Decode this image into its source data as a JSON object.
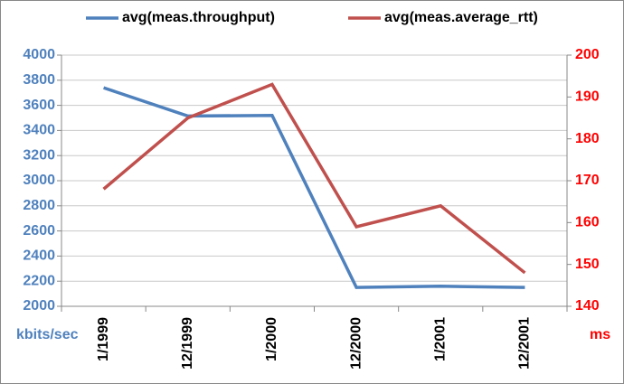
{
  "chart_data": {
    "type": "line",
    "categories": [
      "1/1999",
      "12/1999",
      "1/2000",
      "12/2000",
      "1/2001",
      "12/2001"
    ],
    "series": [
      {
        "name": "avg(meas.throughput)",
        "color": "#4f81bd",
        "values": [
          3740,
          3515,
          3520,
          2150,
          2160,
          2150
        ]
      },
      {
        "name": "avg(meas.average_rtt)",
        "color": "#c0504d",
        "axis": "y2",
        "values": [
          168,
          185,
          193,
          159,
          164,
          148
        ]
      }
    ],
    "y_label": "kbits/sec",
    "y2_label": "ms",
    "ylim": [
      2000,
      4000
    ],
    "yticks": [
      2000,
      2200,
      2400,
      2600,
      2800,
      3000,
      3200,
      3400,
      3600,
      3800,
      4000
    ],
    "y2lim": [
      140,
      200
    ],
    "y2ticks": [
      140,
      150,
      160,
      170,
      180,
      190,
      200
    ],
    "y_color": "#4f81bd",
    "y2_color": "#ff0000",
    "grid": true,
    "legend": "top"
  }
}
